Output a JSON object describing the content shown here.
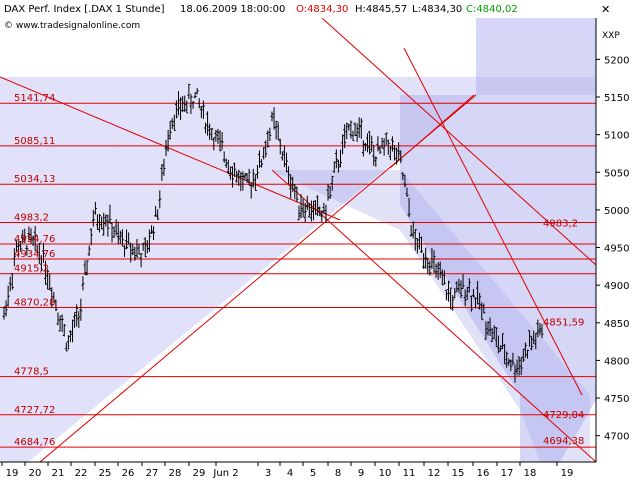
{
  "header": {
    "instrument": "DAX Perf. Index [.DAX  1 Stunde]",
    "datetime": "18.06.2009 18:00:00",
    "open": "O:4834,30",
    "high": "H:4845,57",
    "low": "L:4834,30",
    "close": "C:4840,02",
    "watermark": "© www.tradesignalonline.com",
    "close_button": "✕",
    "corner_label": "XXP"
  },
  "colors": {
    "background": "#ffffff",
    "price_bar": "#000000",
    "resistance_line": "#e00000",
    "level_label": "#c00000",
    "channel_fill": "#c8c8f4",
    "channel_fill_dark": "#a8a8ec",
    "open_color": "#e00000",
    "close_color": "#00a000"
  },
  "chart_data": {
    "type": "ohlc",
    "title": "DAX Perf. Index [.DAX  1 Stunde]",
    "xlabel": "",
    "ylabel": "",
    "ylim": [
      4665,
      5255
    ],
    "x_ticks": [
      "19",
      "20",
      "21",
      "22",
      "25",
      "26",
      "27",
      "28",
      "29",
      "Jun 2",
      "3",
      "4",
      "5",
      "8",
      "9",
      "10",
      "11",
      "12",
      "15",
      "16",
      "17",
      "18",
      "19"
    ],
    "y_ticks": [
      4700,
      4750,
      4800,
      4850,
      4900,
      4950,
      5000,
      5050,
      5100,
      5150,
      5200
    ],
    "y_tick_labels": [
      "4700",
      "4750",
      "4800",
      "4850",
      "4900",
      "4950",
      "5000",
      "5050",
      "5100",
      "5150",
      "5200"
    ],
    "horizontal_levels": [
      {
        "value": 5141.74,
        "label": "5141,74"
      },
      {
        "value": 5085.11,
        "label": "5085,11"
      },
      {
        "value": 5034.13,
        "label": "5034,13"
      },
      {
        "value": 4983.2,
        "label": "4983,2"
      },
      {
        "value": 4954.76,
        "label": "4954,76"
      },
      {
        "value": 4934.76,
        "label": "4934,76"
      },
      {
        "value": 4915.2,
        "label": "4915,2"
      },
      {
        "value": 4870.28,
        "label": "4870,28"
      },
      {
        "value": 4778.5,
        "label": "4778,5"
      },
      {
        "value": 4727.72,
        "label": "4727,72"
      },
      {
        "value": 4684.76,
        "label": "4684,76"
      }
    ],
    "right_annotations": [
      {
        "value": 4983.2,
        "label": "4983,2"
      },
      {
        "value": 4851.59,
        "label": "4851,59"
      },
      {
        "value": 4729.04,
        "label": "4729,04"
      },
      {
        "value": 4694.38,
        "label": "4694,38"
      }
    ],
    "price_path": [
      [
        0,
        4860
      ],
      [
        1,
        4950
      ],
      [
        2,
        4960
      ],
      [
        3,
        4940
      ],
      [
        4,
        4880
      ],
      [
        5,
        4820
      ],
      [
        6,
        4870
      ],
      [
        7,
        4990
      ],
      [
        8,
        4990
      ],
      [
        9,
        4960
      ],
      [
        10,
        4950
      ],
      [
        11,
        4940
      ],
      [
        12,
        5000
      ],
      [
        13,
        5120
      ],
      [
        14,
        5140
      ],
      [
        15,
        5150
      ],
      [
        16,
        5110
      ],
      [
        17,
        5080
      ],
      [
        18,
        5050
      ],
      [
        19,
        5030
      ],
      [
        20,
        5060
      ],
      [
        21,
        5120
      ],
      [
        22,
        5060
      ],
      [
        23,
        5010
      ],
      [
        24,
        5000
      ],
      [
        25,
        4995
      ],
      [
        26,
        5060
      ],
      [
        27,
        5110
      ],
      [
        28,
        5100
      ],
      [
        29,
        5070
      ],
      [
        30,
        5090
      ],
      [
        31,
        5060
      ],
      [
        32,
        4960
      ],
      [
        33,
        4940
      ],
      [
        34,
        4910
      ],
      [
        35,
        4880
      ],
      [
        36,
        4900
      ],
      [
        37,
        4880
      ],
      [
        38,
        4840
      ],
      [
        39,
        4810
      ],
      [
        40,
        4790
      ],
      [
        41,
        4820
      ],
      [
        42,
        4840
      ]
    ],
    "last_close": 4840.02
  }
}
